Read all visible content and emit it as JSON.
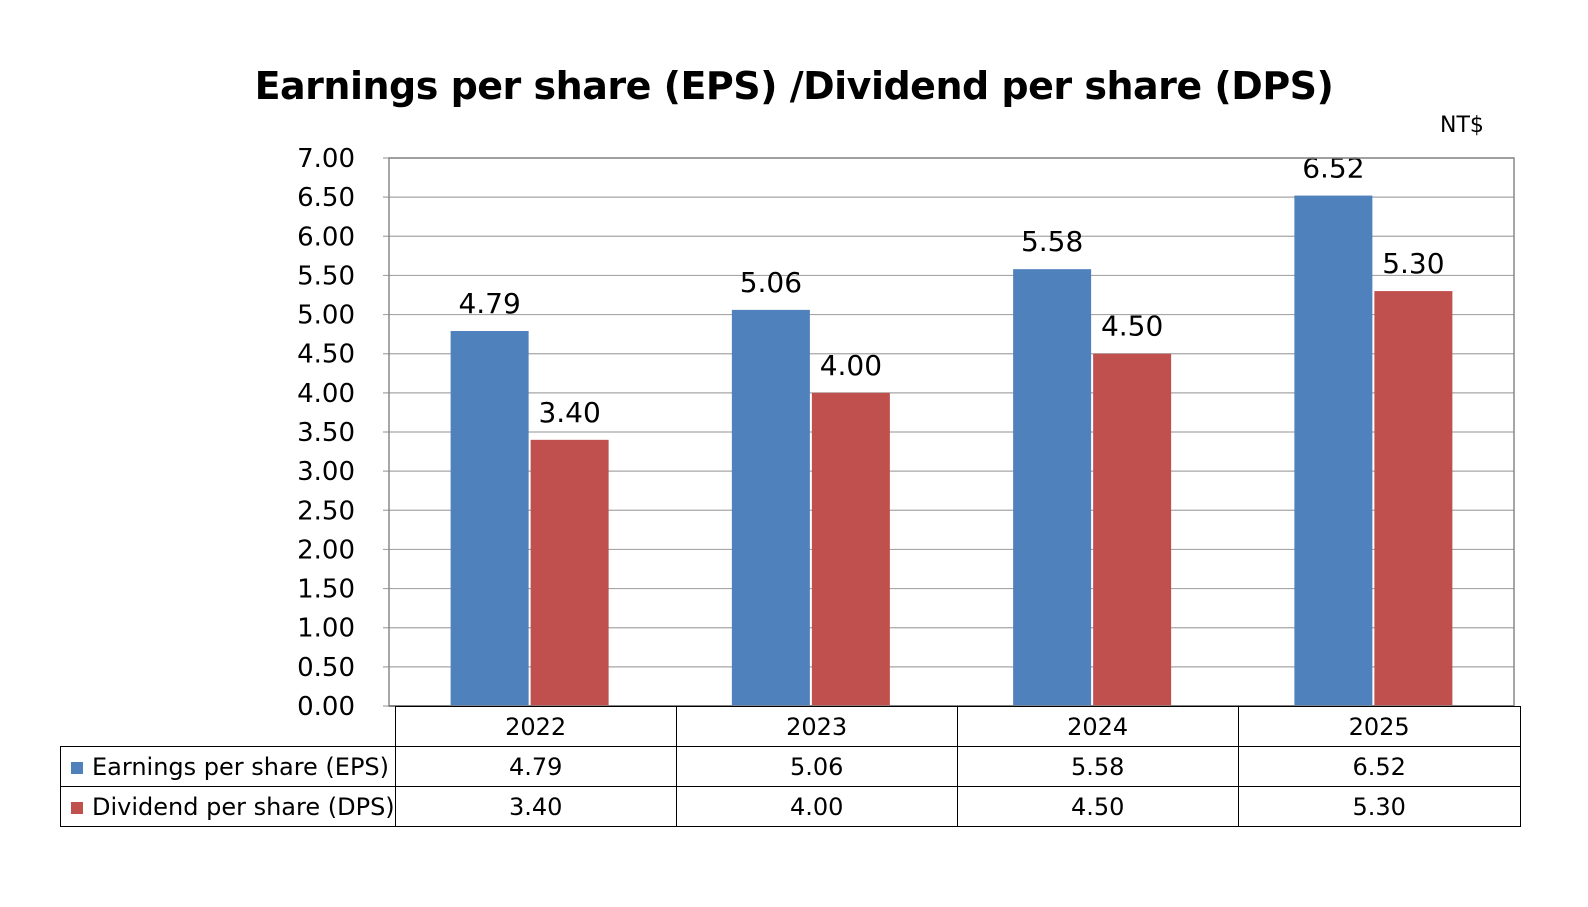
{
  "chart_data": {
    "type": "bar",
    "title": "Earnings per share (EPS) /Dividend per share (DPS)",
    "unit": "NT$",
    "categories": [
      "2022",
      "2023",
      "2024",
      "2025"
    ],
    "series": [
      {
        "name": "Earnings per share (EPS)",
        "color": "#4f81bd",
        "values": [
          4.79,
          5.06,
          5.58,
          6.52
        ]
      },
      {
        "name": "Dividend per share (DPS)",
        "color": "#c0504d",
        "values": [
          3.4,
          4.0,
          4.5,
          5.3
        ]
      }
    ],
    "ylim": [
      0,
      7
    ],
    "yticks": [
      "0.00",
      "0.50",
      "1.00",
      "1.50",
      "2.00",
      "2.50",
      "3.00",
      "3.50",
      "4.00",
      "4.50",
      "5.00",
      "5.50",
      "6.00",
      "6.50",
      "7.00"
    ],
    "data_labels": [
      [
        "4.79",
        "5.06",
        "5.58",
        "6.52"
      ],
      [
        "3.40",
        "4.00",
        "4.50",
        "5.30"
      ]
    ],
    "grid": true,
    "legend": "data-table"
  }
}
